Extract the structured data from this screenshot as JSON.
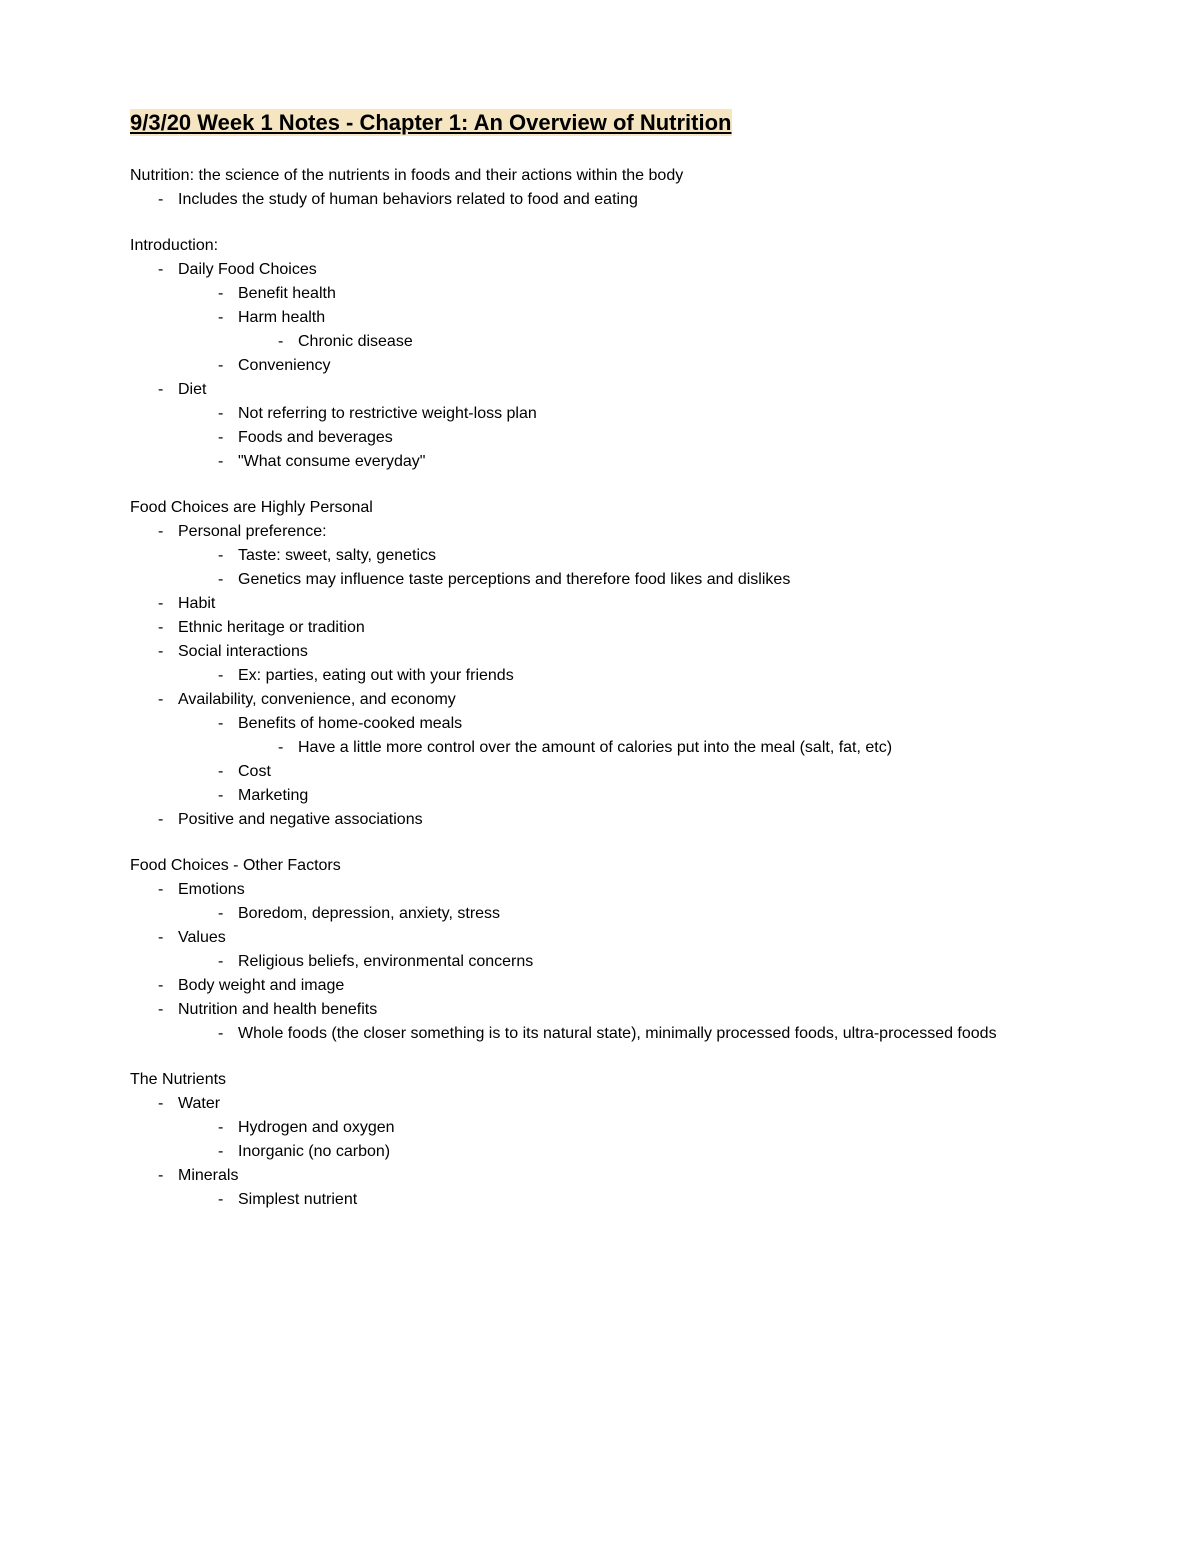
{
  "title": "9/3/20 Week 1 Notes - Chapter 1: An Overview of Nutrition",
  "styling": {
    "title_highlight_color": "#f5e5c0",
    "title_fontsize": 22,
    "body_fontsize": 16,
    "text_color": "#000000",
    "background_color": "#ffffff",
    "font_family": "Arial"
  },
  "sections": [
    {
      "lines": [
        {
          "indent": 0,
          "text": "Nutrition: the science of the nutrients in foods and their actions within the body"
        },
        {
          "indent": 1,
          "text": "Includes the study of human behaviors related to food and eating"
        }
      ]
    },
    {
      "lines": [
        {
          "indent": 0,
          "text": "Introduction:"
        },
        {
          "indent": 1,
          "text": "Daily Food Choices"
        },
        {
          "indent": 2,
          "text": "Benefit health"
        },
        {
          "indent": 2,
          "text": "Harm health"
        },
        {
          "indent": 3,
          "text": "Chronic disease"
        },
        {
          "indent": 2,
          "text": "Conveniency"
        },
        {
          "indent": 1,
          "text": "Diet"
        },
        {
          "indent": 2,
          "text": "Not referring to restrictive weight-loss plan"
        },
        {
          "indent": 2,
          "text": "Foods and beverages"
        },
        {
          "indent": 2,
          "text": "\"What consume everyday\""
        }
      ]
    },
    {
      "lines": [
        {
          "indent": 0,
          "text": "Food Choices are Highly Personal"
        },
        {
          "indent": 1,
          "text": "Personal preference:"
        },
        {
          "indent": 2,
          "text": "Taste: sweet, salty, genetics"
        },
        {
          "indent": 2,
          "text": "Genetics may influence taste perceptions and therefore food likes and dislikes"
        },
        {
          "indent": 1,
          "text": "Habit"
        },
        {
          "indent": 1,
          "text": "Ethnic heritage or tradition"
        },
        {
          "indent": 1,
          "text": "Social interactions"
        },
        {
          "indent": 2,
          "text": "Ex: parties, eating out with your friends"
        },
        {
          "indent": 1,
          "text": "Availability, convenience, and economy"
        },
        {
          "indent": 2,
          "text": "Benefits of home-cooked meals"
        },
        {
          "indent": 3,
          "text": "Have a little more control over the amount of calories put into the meal (salt, fat, etc)"
        },
        {
          "indent": 2,
          "text": "Cost"
        },
        {
          "indent": 2,
          "text": "Marketing"
        },
        {
          "indent": 1,
          "text": "Positive and negative associations"
        }
      ]
    },
    {
      "lines": [
        {
          "indent": 0,
          "text": "Food Choices - Other Factors"
        },
        {
          "indent": 1,
          "text": "Emotions"
        },
        {
          "indent": 2,
          "text": "Boredom, depression, anxiety, stress"
        },
        {
          "indent": 1,
          "text": "Values"
        },
        {
          "indent": 2,
          "text": "Religious beliefs, environmental concerns"
        },
        {
          "indent": 1,
          "text": "Body weight and image"
        },
        {
          "indent": 1,
          "text": "Nutrition and health benefits"
        },
        {
          "indent": 2,
          "text": "Whole foods (the closer something is to its natural state), minimally processed foods, ultra-processed foods"
        }
      ]
    },
    {
      "lines": [
        {
          "indent": 0,
          "text": "The Nutrients"
        },
        {
          "indent": 1,
          "text": "Water"
        },
        {
          "indent": 2,
          "text": "Hydrogen and oxygen"
        },
        {
          "indent": 2,
          "text": "Inorganic (no carbon)"
        },
        {
          "indent": 1,
          "text": "Minerals"
        },
        {
          "indent": 2,
          "text": "Simplest nutrient"
        }
      ]
    }
  ]
}
